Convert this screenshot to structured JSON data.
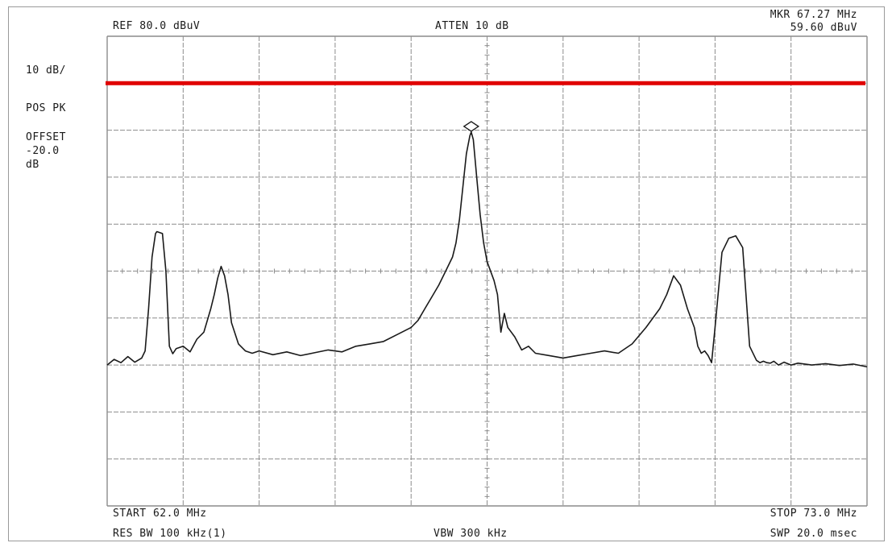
{
  "header": {
    "ref": "REF  80.0 dBuV",
    "atten": "ATTEN 10 dB",
    "marker_freq": "MKR 67.27 MHz",
    "marker_level": "59.60 dBuV"
  },
  "sidebar": {
    "scale": "10 dB/",
    "detector": "POS PK",
    "offset_label": "OFFSET",
    "offset_value": "-20.0",
    "offset_unit": "dB"
  },
  "footer": {
    "start": "START 62.0 MHz",
    "stop": "STOP 73.0 MHz",
    "res_bw": "RES BW 100 kHz(1)",
    "vbw": "VBW 300 kHz",
    "sweep": "SWP 20.0 msec"
  },
  "chart_data": {
    "type": "line",
    "title": "",
    "xlabel": "",
    "ylabel": "",
    "xlim": [
      62.0,
      73.0
    ],
    "ylim": [
      -20,
      80
    ],
    "grid": true,
    "colors": {
      "trace": "#1a1a1a",
      "limit_line": "#e00000",
      "grid": "#8c8c8c"
    },
    "limit_line": {
      "y": 70
    },
    "marker": {
      "x": 67.27,
      "y": 59.6,
      "shape": "diamond"
    },
    "series": [
      {
        "x": [
          62.0,
          62.1,
          62.2,
          62.3,
          62.4,
          62.5,
          62.55,
          62.6,
          62.65,
          62.7,
          62.72,
          62.8,
          62.85,
          62.9,
          62.95,
          63.0,
          63.1,
          63.2,
          63.3,
          63.4,
          63.5,
          63.55,
          63.6,
          63.65,
          63.7,
          63.75,
          63.8,
          63.9,
          64.0,
          64.1,
          64.2,
          64.4,
          64.6,
          64.8,
          65.0,
          65.2,
          65.4,
          65.6,
          65.8,
          66.0,
          66.2,
          66.4,
          66.5,
          66.6,
          66.7,
          66.8,
          66.9,
          67.0,
          67.05,
          67.1,
          67.15,
          67.2,
          67.25,
          67.27,
          67.3,
          67.35,
          67.4,
          67.45,
          67.5,
          67.6,
          67.65,
          67.7,
          67.75,
          67.8,
          67.9,
          68.0,
          68.1,
          68.2,
          68.4,
          68.6,
          68.8,
          69.0,
          69.2,
          69.4,
          69.6,
          69.8,
          70.0,
          70.1,
          70.2,
          70.3,
          70.4,
          70.5,
          70.55,
          70.6,
          70.65,
          70.7,
          70.75,
          70.8,
          70.9,
          71.0,
          71.1,
          71.2,
          71.3,
          71.4,
          71.45,
          71.5,
          71.55,
          71.6,
          71.65,
          71.7,
          71.72,
          71.8,
          71.9,
          72.0,
          72.2,
          72.4,
          72.6,
          72.8,
          73.0
        ],
        "y": [
          10.0,
          11.2,
          10.5,
          11.8,
          10.6,
          11.5,
          13.0,
          22.0,
          33.0,
          38.0,
          38.4,
          38.0,
          30.0,
          14.0,
          12.4,
          13.5,
          14.0,
          12.8,
          15.5,
          17.0,
          22.0,
          25.0,
          28.5,
          31.0,
          29.0,
          25.0,
          19.0,
          14.5,
          13.0,
          12.5,
          13.0,
          12.2,
          12.8,
          12.0,
          12.6,
          13.2,
          12.8,
          14.0,
          14.5,
          15.0,
          16.5,
          18.0,
          19.5,
          22.0,
          24.5,
          27.0,
          30.0,
          33.0,
          36.0,
          41.0,
          48.0,
          55.0,
          58.8,
          59.6,
          58.0,
          50.0,
          42.0,
          36.0,
          32.0,
          28.0,
          25.0,
          17.0,
          21.0,
          18.0,
          16.0,
          13.2,
          14.0,
          12.5,
          12.0,
          11.5,
          12.0,
          12.5,
          13.0,
          12.5,
          14.5,
          18.0,
          22.0,
          25.0,
          29.0,
          27.0,
          22.0,
          18.0,
          14.0,
          12.5,
          13.0,
          12.0,
          10.5,
          18.0,
          34.0,
          37.0,
          37.5,
          35.0,
          14.0,
          11.0,
          10.5,
          10.8,
          10.5,
          10.4,
          10.8,
          10.2,
          10.0,
          10.6,
          10.0,
          10.4,
          10.0,
          10.3,
          9.9,
          10.2,
          9.6
        ]
      }
    ]
  }
}
